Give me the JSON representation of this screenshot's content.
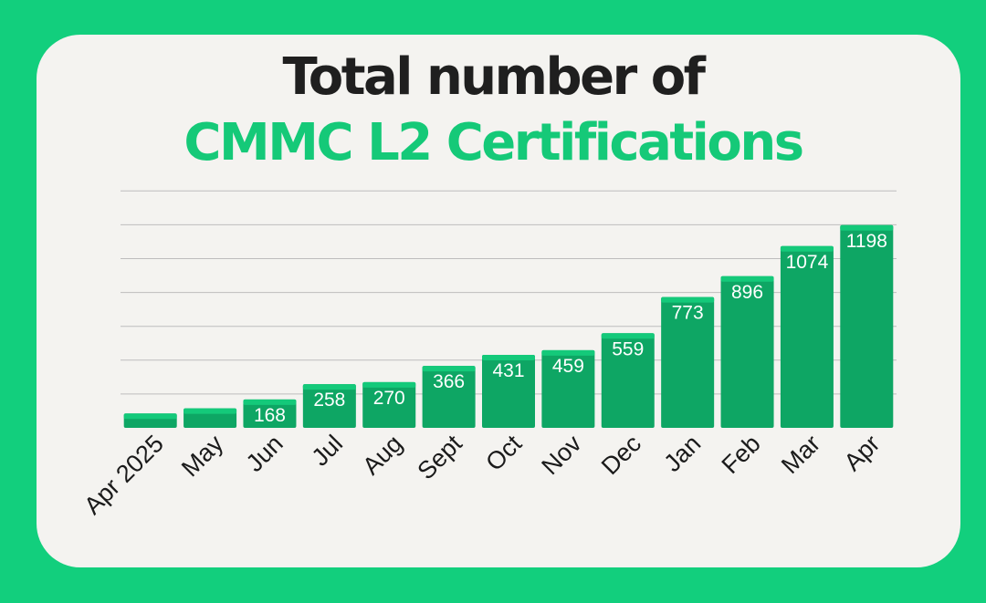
{
  "title": {
    "line1": "Total number of",
    "line2": "CMMC L2 Certifications"
  },
  "colors": {
    "background": "#12cf7d",
    "card": "#f4f3f0",
    "bar": "#0ea664",
    "bar_cap": "#14c97a",
    "title_dark": "#1f1f1f",
    "title_accent": "#15c978",
    "grid": "#bdbdbd"
  },
  "chart_data": {
    "type": "bar",
    "title": "Total number of CMMC L2 Certifications",
    "categories": [
      "Apr 2025",
      "May",
      "Jun",
      "Jul",
      "Aug",
      "Sept",
      "Oct",
      "Nov",
      "Dec",
      "Jan",
      "Feb",
      "Mar",
      "Apr"
    ],
    "values": [
      85,
      115,
      168,
      258,
      270,
      366,
      431,
      459,
      559,
      773,
      896,
      1074,
      1198
    ],
    "data_labels": [
      "",
      "",
      "168",
      "258",
      "270",
      "366",
      "431",
      "459",
      "559",
      "773",
      "896",
      "1074",
      "1198"
    ],
    "xlabel": "",
    "ylabel": "",
    "ylim": [
      0,
      1400
    ],
    "grid": true,
    "legend": "none"
  }
}
